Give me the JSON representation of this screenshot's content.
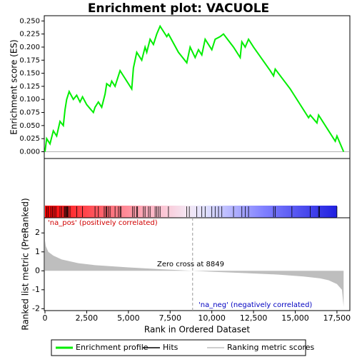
{
  "chart_data": {
    "type": "gsea",
    "title": "Enrichment plot: VACUOLE",
    "es_ylabel": "Enrichment score (ES)",
    "metric_ylabel": "Ranked list metric (PreRanked)",
    "xlabel": "Rank in Ordered Dataset",
    "pos_label": "'na_pos' (positively correlated)",
    "neg_label": "'na_neg' (negatively correlated)",
    "zero_cross_label": "Zero cross at 8849",
    "zero_cross": 8849,
    "xlim": [
      0,
      18000
    ],
    "xticks": [
      0,
      {
        "value": 2500,
        "label": "2,500"
      },
      {
        "value": 5000,
        "label": "5,000"
      },
      {
        "value": 7500,
        "label": "7,500"
      },
      {
        "value": 10000,
        "label": "10,000"
      },
      {
        "value": 12500,
        "label": "12,500"
      },
      {
        "value": 15000,
        "label": "15,000"
      },
      {
        "value": 17500,
        "label": "17,500"
      }
    ],
    "ylim": [
      -0.013,
      0.26
    ],
    "yticks": [
      {
        "value": 0,
        "label": "0.000"
      },
      {
        "value": 0.025,
        "label": "0.025"
      },
      {
        "value": 0.05,
        "label": "0.050"
      },
      {
        "value": 0.075,
        "label": "0.075"
      },
      {
        "value": 0.1,
        "label": "0.100"
      },
      {
        "value": 0.125,
        "label": "0.125"
      },
      {
        "value": 0.15,
        "label": "0.150"
      },
      {
        "value": 0.175,
        "label": "0.175"
      },
      {
        "value": 0.2,
        "label": "0.200"
      },
      {
        "value": 0.225,
        "label": "0.225"
      },
      {
        "value": 0.25,
        "label": "0.250"
      }
    ],
    "y2lim": [
      -2.1,
      2.8
    ],
    "y2ticks": [
      -2,
      -1,
      0,
      1,
      2
    ],
    "series": [
      {
        "name": "Enrichment profile",
        "color": "#00ee00",
        "x": [
          0,
          100,
          300,
          500,
          700,
          900,
          1100,
          1200,
          1300,
          1450,
          1700,
          1900,
          2100,
          2250,
          2500,
          2900,
          3000,
          3200,
          3400,
          3600,
          3700,
          3900,
          4000,
          4200,
          4500,
          4700,
          5200,
          5300,
          5500,
          5800,
          6000,
          6100,
          6300,
          6500,
          6700,
          6900,
          7100,
          7300,
          7400,
          8000,
          8500,
          8700,
          9000,
          9200,
          9400,
          9600,
          9800,
          10000,
          10200,
          10500,
          10700,
          11300,
          11700,
          11800,
          12000,
          12200,
          12500,
          13500,
          13700,
          13800,
          14700,
          14800,
          15800,
          15900,
          16300,
          16400,
          17400,
          17500,
          17900
        ],
        "values": [
          0,
          0.025,
          0.015,
          0.04,
          0.03,
          0.058,
          0.05,
          0.08,
          0.1,
          0.115,
          0.1,
          0.108,
          0.095,
          0.105,
          0.09,
          0.075,
          0.085,
          0.095,
          0.085,
          0.11,
          0.13,
          0.125,
          0.135,
          0.125,
          0.155,
          0.145,
          0.12,
          0.16,
          0.19,
          0.175,
          0.2,
          0.19,
          0.215,
          0.205,
          0.225,
          0.24,
          0.23,
          0.22,
          0.225,
          0.19,
          0.17,
          0.2,
          0.18,
          0.195,
          0.185,
          0.215,
          0.205,
          0.195,
          0.215,
          0.22,
          0.225,
          0.2,
          0.18,
          0.21,
          0.2,
          0.215,
          0.2,
          0.155,
          0.145,
          0.158,
          0.12,
          0.115,
          0.065,
          0.07,
          0.055,
          0.07,
          0.02,
          0.03,
          0
        ]
      },
      {
        "name": "Hits",
        "color": "#000000",
        "x": [
          100,
          200,
          350,
          450,
          550,
          650,
          900,
          1000,
          1150,
          1200,
          1250,
          1300,
          1350,
          1400,
          1500,
          1900,
          2250,
          3000,
          3200,
          3550,
          3650,
          3700,
          3800,
          3900,
          4200,
          4400,
          4500,
          4550,
          5250,
          5350,
          5500,
          5550,
          5900,
          6000,
          6200,
          6300,
          6600,
          6700,
          6800,
          6900,
          7400,
          8500,
          8650,
          9100,
          9400,
          9600,
          10000,
          10200,
          10400,
          10600,
          11300,
          11800,
          12000,
          12200,
          13700,
          13800,
          14800,
          15900,
          16400,
          16450,
          17500
        ]
      },
      {
        "name": "Ranking metric scores",
        "color": "#bebebe",
        "axis": "y2",
        "x": [
          0,
          50,
          200,
          500,
          1000,
          2000,
          3000,
          5000,
          7000,
          8849,
          10000,
          12000,
          14000,
          15500,
          16500,
          17000,
          17500,
          17800,
          17900
        ],
        "values": [
          1.6,
          1.3,
          1.0,
          0.8,
          0.6,
          0.4,
          0.3,
          0.18,
          0.08,
          0,
          -0.05,
          -0.12,
          -0.2,
          -0.3,
          -0.4,
          -0.5,
          -0.7,
          -1.0,
          -1.9
        ]
      }
    ]
  }
}
